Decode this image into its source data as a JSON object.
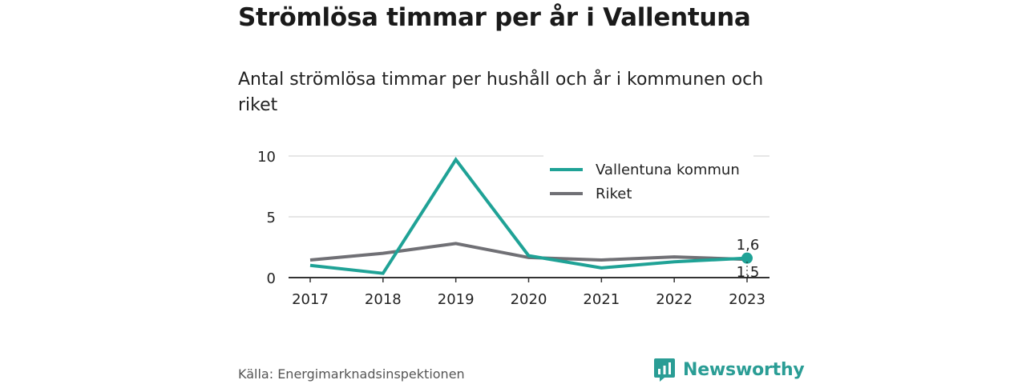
{
  "title": "Strömlösa timmar per år i Vallentuna",
  "subtitle": "Antal strömlösa timmar per hushåll och år i kommunen och riket",
  "source": "Källa: Energimarknadsinspektionen",
  "brand": {
    "name": "Newsworthy",
    "icon": "bar-chart-logo-icon",
    "color": "#2a9d95"
  },
  "chart_data": {
    "type": "line",
    "x": [
      "2017",
      "2018",
      "2019",
      "2020",
      "2021",
      "2022",
      "2023"
    ],
    "y_ticks": [
      0,
      5,
      10
    ],
    "ylim": [
      0,
      10
    ],
    "grid": true,
    "legend": "top-right",
    "series": [
      {
        "name": "Vallentuna kommun",
        "color": "#1fa296",
        "values": [
          1.0,
          0.35,
          9.7,
          1.8,
          0.8,
          1.3,
          1.6
        ]
      },
      {
        "name": "Riket",
        "color": "#707075",
        "values": [
          1.45,
          2.0,
          2.8,
          1.65,
          1.45,
          1.7,
          1.5
        ]
      }
    ],
    "end_labels": [
      "1,6",
      "1,5"
    ]
  }
}
